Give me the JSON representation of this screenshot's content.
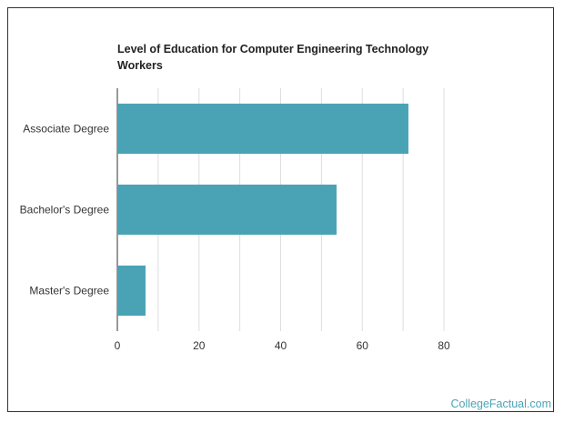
{
  "chart_data": {
    "type": "bar",
    "orientation": "horizontal",
    "title": "Level of Education for Computer Engineering Technology Workers",
    "categories": [
      "Associate Degree",
      "Bachelor's Degree",
      "Master's Degree"
    ],
    "values": [
      71.3,
      53.7,
      6.9
    ],
    "xlim": [
      0,
      80
    ],
    "xticks": [
      "0",
      "20",
      "40",
      "60",
      "80"
    ],
    "grid": "vertical",
    "bar_color": "#4aa3b5"
  },
  "watermark": "CollegeFactual.com"
}
